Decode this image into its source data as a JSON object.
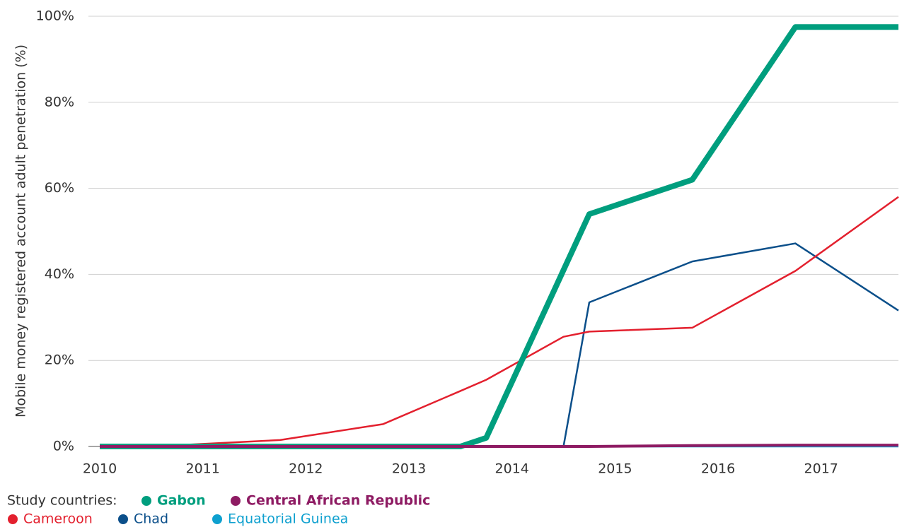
{
  "chart_data": {
    "type": "line",
    "y_label": "Mobile money registered account adult penetration (%)",
    "legend_title": "Study countries:",
    "x": [
      2010,
      2010.75,
      2011.75,
      2012.75,
      2013.5,
      2013.75,
      2014.5,
      2014.75,
      2015.75,
      2016.75,
      2017.75
    ],
    "xlim": [
      2010,
      2017.75
    ],
    "xticks": [
      2010,
      2011,
      2012,
      2013,
      2014,
      2015,
      2016,
      2017
    ],
    "ylim": [
      0,
      100
    ],
    "yticks": [
      {
        "value": 0,
        "label": "0%"
      },
      {
        "value": 20,
        "label": "20%"
      },
      {
        "value": 40,
        "label": "40%"
      },
      {
        "value": 60,
        "label": "60%"
      },
      {
        "value": 80,
        "label": "80%"
      },
      {
        "value": 100,
        "label": "100%"
      }
    ],
    "grid": true,
    "series": [
      {
        "name": "Gabon",
        "color": "#009e7e",
        "bold": true,
        "values": [
          0,
          0,
          0,
          0,
          0,
          2,
          41,
          54,
          62,
          97.5,
          97.5
        ]
      },
      {
        "name": "Central African Republic",
        "color": "#8e1b63",
        "bold": true,
        "values": [
          0,
          0,
          0,
          0,
          0,
          0,
          0,
          0,
          0.2,
          0.3,
          0.3
        ]
      },
      {
        "name": "Cameroon",
        "color": "#e3202e",
        "bold": false,
        "values": [
          0,
          0.3,
          1.5,
          5.2,
          12.9,
          15.5,
          25.5,
          26.7,
          27.6,
          40.8,
          58
        ]
      },
      {
        "name": "Chad",
        "color": "#0b4f8a",
        "bold": false,
        "values": [
          0,
          0,
          0,
          0,
          0,
          0,
          0,
          33.5,
          43,
          47.2,
          31.6
        ]
      },
      {
        "name": "Equatorial Guinea",
        "color": "#0ea0cf",
        "bold": false,
        "values": [
          0,
          0,
          0,
          0,
          0,
          0,
          0,
          0,
          0,
          0,
          0
        ]
      }
    ]
  }
}
